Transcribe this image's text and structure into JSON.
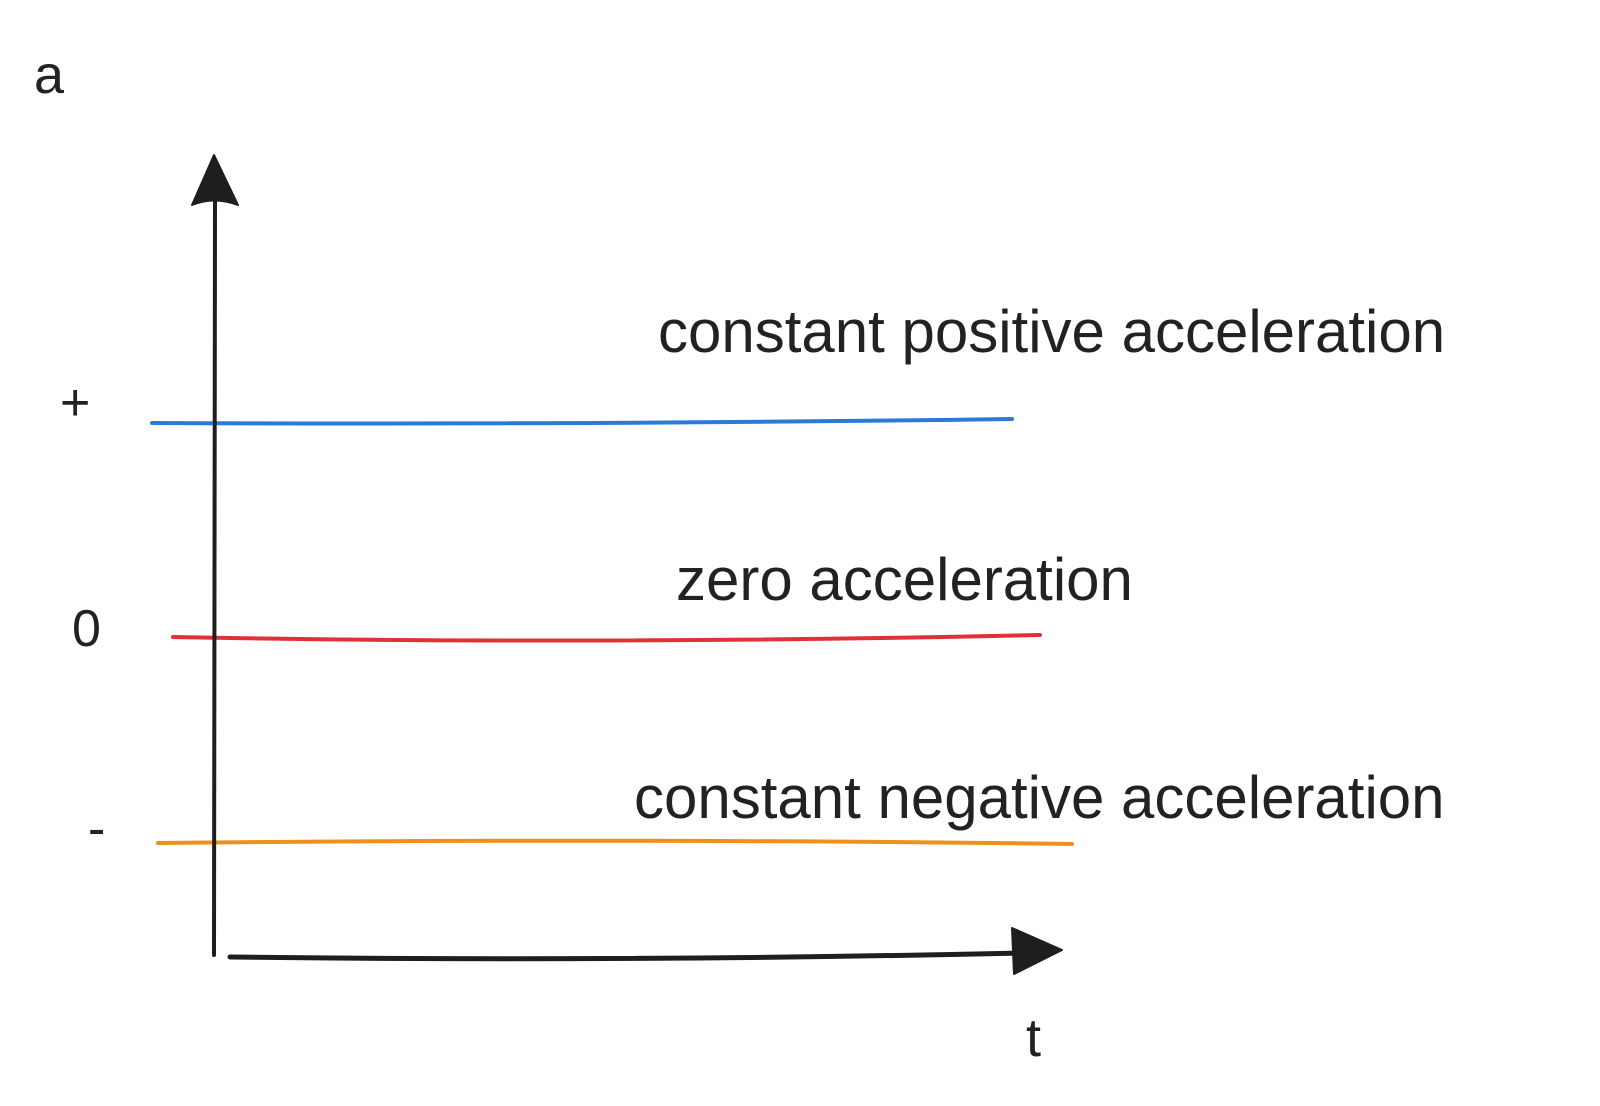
{
  "chart_data": {
    "type": "line",
    "title": "",
    "xlabel": "t",
    "ylabel": "a",
    "y_ticks": [
      "+",
      "0",
      "-"
    ],
    "series": [
      {
        "name": "constant positive acceleration",
        "level": "+",
        "color": "#2a7ad6"
      },
      {
        "name": "zero acceleration",
        "level": "0",
        "color": "#e0303a"
      },
      {
        "name": "constant negative acceleration",
        "level": "-",
        "color": "#f0901a"
      }
    ],
    "grid": false,
    "legend": "none"
  },
  "axis_color": "#1e1e1e"
}
